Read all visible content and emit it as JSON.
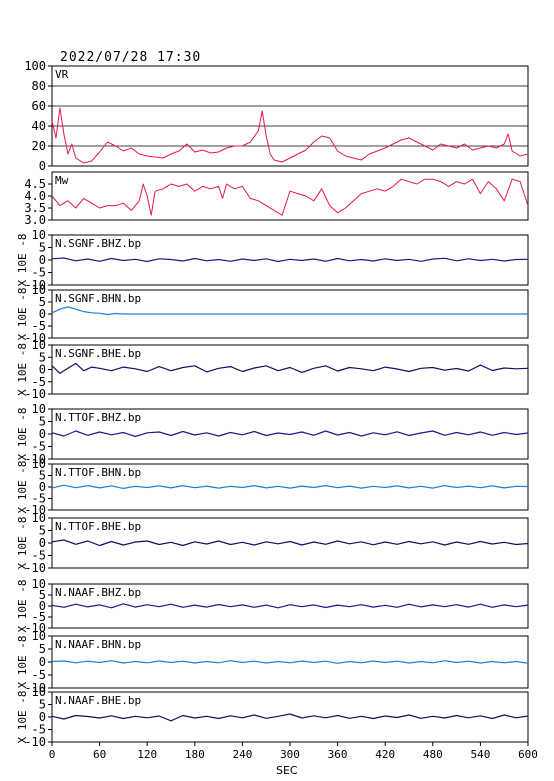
{
  "header": {
    "timestamp": "2022/07/28 17:30"
  },
  "colors": {
    "vr": "#e8184a",
    "mw": "#e8184a",
    "bhz": "#1a1a8c",
    "bhn": "#1a7fd4",
    "bhe": "#101060",
    "axis": "#000000"
  },
  "chart_data": [
    {
      "type": "line",
      "id": "vr",
      "panel_label": "VR",
      "ylim": [
        0,
        100
      ],
      "yticks": [
        0,
        20,
        40,
        60,
        80,
        100
      ],
      "grid": true,
      "xlim": [
        0,
        600
      ],
      "x": [
        0,
        5,
        10,
        15,
        20,
        25,
        30,
        40,
        50,
        60,
        70,
        80,
        90,
        100,
        110,
        120,
        130,
        140,
        150,
        160,
        170,
        180,
        190,
        200,
        210,
        220,
        230,
        240,
        250,
        260,
        265,
        270,
        275,
        280,
        290,
        300,
        310,
        320,
        330,
        340,
        350,
        360,
        370,
        380,
        390,
        400,
        410,
        420,
        430,
        440,
        450,
        460,
        470,
        480,
        490,
        500,
        510,
        520,
        530,
        540,
        550,
        560,
        570,
        575,
        580,
        590,
        600
      ],
      "values": [
        45,
        28,
        58,
        32,
        12,
        22,
        8,
        3,
        5,
        14,
        24,
        20,
        15,
        18,
        12,
        10,
        9,
        8,
        12,
        15,
        22,
        14,
        16,
        13,
        14,
        18,
        20,
        20,
        24,
        35,
        55,
        30,
        12,
        6,
        4,
        8,
        12,
        16,
        24,
        30,
        28,
        15,
        10,
        8,
        6,
        12,
        15,
        18,
        22,
        26,
        28,
        24,
        20,
        16,
        22,
        20,
        18,
        22,
        16,
        18,
        20,
        18,
        22,
        32,
        15,
        10,
        12
      ]
    },
    {
      "type": "line",
      "id": "mw",
      "panel_label": "Mw",
      "ylim": [
        3.0,
        5.0
      ],
      "yticks": [
        3.0,
        3.5,
        4.0,
        4.5
      ],
      "yticklabels": [
        "3.0",
        "3.5",
        "4.0",
        "4.5"
      ],
      "xlim": [
        0,
        600
      ],
      "x": [
        0,
        10,
        20,
        30,
        40,
        50,
        60,
        70,
        80,
        90,
        100,
        110,
        115,
        120,
        125,
        130,
        140,
        150,
        160,
        170,
        180,
        190,
        200,
        210,
        215,
        220,
        230,
        240,
        250,
        260,
        270,
        280,
        290,
        300,
        310,
        320,
        330,
        340,
        350,
        360,
        370,
        380,
        390,
        400,
        410,
        420,
        430,
        440,
        450,
        460,
        470,
        480,
        490,
        500,
        510,
        520,
        530,
        540,
        550,
        560,
        570,
        580,
        590,
        600
      ],
      "values": [
        4.0,
        3.6,
        3.8,
        3.5,
        3.9,
        3.7,
        3.5,
        3.6,
        3.6,
        3.7,
        3.4,
        3.8,
        4.5,
        4.0,
        3.2,
        4.2,
        4.3,
        4.5,
        4.4,
        4.5,
        4.2,
        4.4,
        4.3,
        4.4,
        3.9,
        4.5,
        4.3,
        4.4,
        3.9,
        3.8,
        3.6,
        3.4,
        3.2,
        4.2,
        4.1,
        4.0,
        3.8,
        4.3,
        3.6,
        3.3,
        3.5,
        3.8,
        4.1,
        4.2,
        4.3,
        4.2,
        4.4,
        4.7,
        4.6,
        4.5,
        4.7,
        4.7,
        4.6,
        4.4,
        4.6,
        4.5,
        4.7,
        4.1,
        4.6,
        4.3,
        3.8,
        4.7,
        4.6,
        3.6
      ]
    },
    {
      "type": "line",
      "id": "sgnf-bhz",
      "panel_label": "N.SGNF.BHZ.bp",
      "ylabel": "X 10E -8",
      "ylim": [
        -10,
        10
      ],
      "yticks": [
        -10,
        -5,
        0,
        5,
        10
      ],
      "xlim": [
        0,
        600
      ],
      "color_key": "bhz",
      "x": [
        0,
        15,
        30,
        45,
        60,
        75,
        90,
        105,
        120,
        135,
        150,
        165,
        180,
        195,
        210,
        225,
        240,
        255,
        270,
        285,
        300,
        315,
        330,
        345,
        360,
        375,
        390,
        405,
        420,
        435,
        450,
        465,
        480,
        495,
        510,
        525,
        540,
        555,
        570,
        585,
        600
      ],
      "values": [
        0.5,
        0.8,
        -0.3,
        0.4,
        -0.5,
        0.6,
        -0.2,
        0.3,
        -0.6,
        0.5,
        0.2,
        -0.4,
        0.6,
        -0.3,
        0.2,
        -0.5,
        0.4,
        -0.2,
        0.5,
        -0.6,
        0.3,
        -0.2,
        0.4,
        -0.5,
        0.6,
        -0.3,
        0.2,
        -0.4,
        0.5,
        -0.2,
        0.3,
        -0.5,
        0.4,
        0.7,
        -0.3,
        0.5,
        -0.2,
        0.3,
        -0.4,
        0.2,
        0.3
      ]
    },
    {
      "type": "line",
      "id": "sgnf-bhn",
      "panel_label": "N.SGNF.BHN.bp",
      "ylabel": "X 10E -8",
      "ylim": [
        -10,
        10
      ],
      "yticks": [
        -10,
        -5,
        0,
        5,
        10
      ],
      "xlim": [
        0,
        600
      ],
      "color_key": "bhn",
      "x": [
        0,
        10,
        20,
        30,
        40,
        50,
        60,
        70,
        80,
        90,
        100,
        600
      ],
      "values": [
        0.5,
        2.0,
        3.0,
        2.0,
        1.0,
        0.5,
        0.3,
        -0.2,
        0.2,
        0.0,
        0.0,
        0.0
      ]
    },
    {
      "type": "line",
      "id": "sgnf-bhe",
      "panel_label": "N.SGNF.BHE.bp",
      "ylabel": "X 10E -8",
      "ylim": [
        -10,
        10
      ],
      "yticks": [
        -10,
        -5,
        0,
        5,
        10
      ],
      "xlim": [
        0,
        600
      ],
      "color_key": "bhe",
      "x": [
        0,
        10,
        20,
        30,
        40,
        50,
        60,
        75,
        90,
        105,
        120,
        135,
        150,
        165,
        180,
        195,
        210,
        225,
        240,
        255,
        270,
        285,
        300,
        315,
        330,
        345,
        360,
        375,
        390,
        405,
        420,
        435,
        450,
        465,
        480,
        495,
        510,
        525,
        540,
        555,
        570,
        585,
        600
      ],
      "values": [
        1.5,
        -1.5,
        0.5,
        2.5,
        -0.5,
        1.0,
        0.5,
        -0.5,
        1.0,
        0.3,
        -0.8,
        1.2,
        -0.5,
        0.8,
        1.5,
        -1.0,
        0.5,
        1.2,
        -0.8,
        0.6,
        1.5,
        -0.5,
        0.8,
        -1.2,
        0.5,
        1.5,
        -0.6,
        0.8,
        0.3,
        -0.5,
        1.0,
        0.2,
        -0.8,
        0.5,
        0.8,
        -0.3,
        0.4,
        -0.6,
        1.8,
        -0.4,
        0.6,
        0.3,
        0.5
      ]
    },
    {
      "type": "line",
      "id": "ttof-bhz",
      "panel_label": "N.TTOF.BHZ.bp",
      "ylabel": "X 10E -8",
      "ylim": [
        -10,
        10
      ],
      "yticks": [
        -10,
        -5,
        0,
        5,
        10
      ],
      "xlim": [
        0,
        600
      ],
      "color_key": "bhz",
      "x": [
        0,
        15,
        30,
        45,
        60,
        75,
        90,
        105,
        120,
        135,
        150,
        165,
        180,
        195,
        210,
        225,
        240,
        255,
        270,
        285,
        300,
        315,
        330,
        345,
        360,
        375,
        390,
        405,
        420,
        435,
        450,
        465,
        480,
        495,
        510,
        525,
        540,
        555,
        570,
        585,
        600
      ],
      "values": [
        0.5,
        -0.8,
        1.2,
        -0.5,
        0.8,
        -0.3,
        0.6,
        -1.0,
        0.5,
        0.8,
        -0.6,
        1.0,
        -0.4,
        0.5,
        -0.8,
        0.6,
        -0.3,
        1.0,
        -0.6,
        0.4,
        -0.2,
        0.8,
        -0.5,
        1.2,
        -0.4,
        0.6,
        -0.8,
        0.5,
        -0.3,
        0.9,
        -0.6,
        0.4,
        1.2,
        -0.5,
        0.6,
        -0.3,
        0.8,
        -0.5,
        0.6,
        -0.2,
        0.4
      ]
    },
    {
      "type": "line",
      "id": "ttof-bhn",
      "panel_label": "N.TTOF.BHN.bp",
      "ylabel": "X 10E -8",
      "ylim": [
        -10,
        10
      ],
      "yticks": [
        -10,
        -5,
        0,
        5,
        10
      ],
      "xlim": [
        0,
        600
      ],
      "color_key": "bhn",
      "x": [
        0,
        15,
        30,
        45,
        60,
        75,
        90,
        105,
        120,
        135,
        150,
        165,
        180,
        195,
        210,
        225,
        240,
        255,
        270,
        285,
        300,
        315,
        330,
        345,
        360,
        375,
        390,
        405,
        420,
        435,
        450,
        465,
        480,
        495,
        510,
        525,
        540,
        555,
        570,
        585,
        600
      ],
      "values": [
        -0.5,
        0.8,
        -0.3,
        0.6,
        -0.4,
        0.5,
        -0.6,
        0.3,
        -0.2,
        0.5,
        -0.4,
        0.6,
        -0.3,
        0.4,
        -0.5,
        0.3,
        -0.2,
        0.6,
        -0.4,
        0.3,
        -0.5,
        0.4,
        -0.2,
        0.6,
        -0.3,
        0.4,
        -0.5,
        0.3,
        -0.2,
        0.5,
        -0.4,
        0.3,
        -0.5,
        0.6,
        -0.2,
        0.4,
        -0.3,
        0.5,
        -0.4,
        0.3,
        0.2
      ]
    },
    {
      "type": "line",
      "id": "ttof-bhe",
      "panel_label": "N.TTOF.BHE.bp",
      "ylabel": "X 10E -8",
      "ylim": [
        -10,
        10
      ],
      "yticks": [
        -10,
        -5,
        0,
        5,
        10
      ],
      "xlim": [
        0,
        600
      ],
      "color_key": "bhe",
      "x": [
        0,
        15,
        30,
        45,
        60,
        75,
        90,
        105,
        120,
        135,
        150,
        165,
        180,
        195,
        210,
        225,
        240,
        255,
        270,
        285,
        300,
        315,
        330,
        345,
        360,
        375,
        390,
        405,
        420,
        435,
        450,
        465,
        480,
        495,
        510,
        525,
        540,
        555,
        570,
        585,
        600
      ],
      "values": [
        0.5,
        1.2,
        -0.5,
        0.8,
        -1.0,
        0.6,
        -0.8,
        0.4,
        0.8,
        -0.6,
        0.3,
        -1.0,
        0.5,
        -0.4,
        0.8,
        -0.6,
        0.3,
        -0.8,
        0.5,
        -0.3,
        0.6,
        -0.8,
        0.4,
        -0.5,
        0.8,
        -0.3,
        0.5,
        -0.7,
        0.4,
        -0.5,
        0.6,
        -0.3,
        0.5,
        -0.8,
        0.4,
        -0.5,
        0.6,
        -0.4,
        0.3,
        -0.6,
        -0.2
      ]
    },
    {
      "type": "line",
      "id": "naaf-bhz",
      "panel_label": "N.NAAF.BHZ.bp",
      "ylabel": "X 10E -8",
      "ylim": [
        -10,
        10
      ],
      "yticks": [
        -10,
        -5,
        0,
        5,
        10
      ],
      "xlim": [
        0,
        600
      ],
      "color_key": "bhz",
      "x": [
        0,
        15,
        30,
        45,
        60,
        75,
        90,
        105,
        120,
        135,
        150,
        165,
        180,
        195,
        210,
        225,
        240,
        255,
        270,
        285,
        300,
        315,
        330,
        345,
        360,
        375,
        390,
        405,
        420,
        435,
        450,
        465,
        480,
        495,
        510,
        525,
        540,
        555,
        570,
        585,
        600
      ],
      "values": [
        0.3,
        -0.6,
        0.8,
        -0.4,
        0.5,
        -0.8,
        1.0,
        -0.5,
        0.6,
        -0.3,
        0.8,
        -0.6,
        0.4,
        -0.5,
        0.7,
        -0.3,
        0.5,
        -0.6,
        0.4,
        -0.8,
        0.6,
        -0.3,
        0.5,
        -0.7,
        0.4,
        -0.3,
        0.6,
        -0.5,
        0.3,
        -0.6,
        0.8,
        -0.4,
        0.5,
        -0.3,
        0.6,
        -0.5,
        0.8,
        -0.6,
        0.5,
        -0.3,
        0.4
      ]
    },
    {
      "type": "line",
      "id": "naaf-bhn",
      "panel_label": "N.NAAF.BHN.bp",
      "ylabel": "X 10E -8",
      "ylim": [
        -10,
        10
      ],
      "yticks": [
        -10,
        -5,
        0,
        5,
        10
      ],
      "xlim": [
        0,
        600
      ],
      "color_key": "bhn",
      "x": [
        0,
        15,
        30,
        45,
        60,
        75,
        90,
        105,
        120,
        135,
        150,
        165,
        180,
        195,
        210,
        225,
        240,
        255,
        270,
        285,
        300,
        315,
        330,
        345,
        360,
        375,
        390,
        405,
        420,
        435,
        450,
        465,
        480,
        495,
        510,
        525,
        540,
        555,
        570,
        585,
        600
      ],
      "values": [
        0.2,
        0.4,
        -0.3,
        0.3,
        -0.2,
        0.5,
        -0.4,
        0.2,
        -0.3,
        0.4,
        -0.2,
        0.3,
        -0.4,
        0.2,
        -0.3,
        0.5,
        -0.2,
        0.3,
        -0.4,
        0.2,
        -0.3,
        0.4,
        -0.2,
        0.3,
        -0.5,
        0.2,
        -0.3,
        0.4,
        -0.2,
        0.3,
        -0.4,
        0.2,
        -0.3,
        0.5,
        -0.2,
        0.3,
        -0.4,
        0.2,
        -0.3,
        0.2,
        -0.5
      ]
    },
    {
      "type": "line",
      "id": "naaf-bhe",
      "panel_label": "N.NAAF.BHE.bp",
      "ylabel": "X 10E -8",
      "ylim": [
        -10,
        10
      ],
      "yticks": [
        -10,
        -5,
        0,
        5,
        10
      ],
      "xlim": [
        0,
        600
      ],
      "color_key": "bhe",
      "x": [
        0,
        15,
        30,
        45,
        60,
        75,
        90,
        105,
        120,
        135,
        150,
        165,
        180,
        195,
        210,
        225,
        240,
        255,
        270,
        285,
        300,
        315,
        330,
        345,
        360,
        375,
        390,
        405,
        420,
        435,
        450,
        465,
        480,
        495,
        510,
        525,
        540,
        555,
        570,
        585,
        600
      ],
      "values": [
        0.3,
        -0.8,
        0.6,
        0.2,
        -0.4,
        0.5,
        -0.6,
        0.3,
        -0.3,
        0.4,
        -1.5,
        0.6,
        -0.4,
        0.3,
        -0.6,
        0.5,
        -0.3,
        0.8,
        -0.5,
        0.3,
        1.2,
        -0.4,
        0.5,
        -0.3,
        0.6,
        -0.5,
        0.3,
        -0.6,
        0.4,
        -0.2,
        0.8,
        -0.5,
        0.3,
        -0.4,
        0.6,
        -0.3,
        0.5,
        -0.6,
        0.8,
        -0.3,
        0.4
      ]
    }
  ],
  "x_axis": {
    "label": "SEC",
    "ticks": [
      0,
      60,
      120,
      180,
      240,
      300,
      360,
      420,
      480,
      540,
      600
    ]
  }
}
